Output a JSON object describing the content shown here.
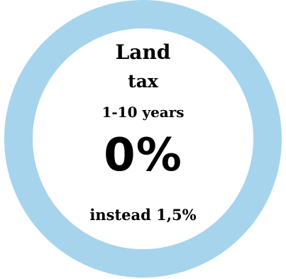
{
  "badge": {
    "ring_color": "#a6d4ec",
    "lines": {
      "title_line1": "Land",
      "title_line2": "tax",
      "period": "1-10 years",
      "rate": "0%",
      "comparison": "instead 1,5%"
    }
  }
}
